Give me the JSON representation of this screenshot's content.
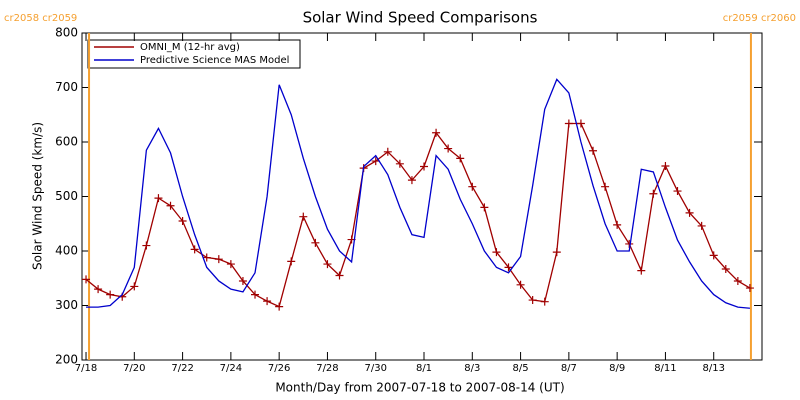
{
  "chart_data": {
    "type": "line",
    "title": "Solar Wind Speed Comparisons",
    "x_label": "Month/Day from 2007-07-18 to 2007-08-14 (UT)",
    "y_label": "Solar Wind Speed (km/s)",
    "xlim": [
      "2007-07-17T20",
      "2007-08-15T00"
    ],
    "ylim": [
      200,
      800
    ],
    "yticks": [
      200,
      300,
      400,
      500,
      600,
      700,
      800
    ],
    "xticks": [
      {
        "value": "2007-07-18T00",
        "label": "7/18"
      },
      {
        "value": "2007-07-20T00",
        "label": "7/20"
      },
      {
        "value": "2007-07-22T00",
        "label": "7/22"
      },
      {
        "value": "2007-07-24T00",
        "label": "7/24"
      },
      {
        "value": "2007-07-26T00",
        "label": "7/26"
      },
      {
        "value": "2007-07-28T00",
        "label": "7/28"
      },
      {
        "value": "2007-07-30T00",
        "label": "7/30"
      },
      {
        "value": "2007-08-01T00",
        "label": "8/1"
      },
      {
        "value": "2007-08-03T00",
        "label": "8/3"
      },
      {
        "value": "2007-08-05T00",
        "label": "8/5"
      },
      {
        "value": "2007-08-07T00",
        "label": "8/7"
      },
      {
        "value": "2007-08-09T00",
        "label": "8/9"
      },
      {
        "value": "2007-08-11T00",
        "label": "8/11"
      },
      {
        "value": "2007-08-13T00",
        "label": "8/13"
      }
    ],
    "annotations": [
      {
        "text": "cr2058 cr2059",
        "x": "2007-07-18T03",
        "color": "#f5a030"
      },
      {
        "text": "cr2059 cr2060",
        "x": "2007-08-14T13",
        "color": "#f5a030"
      }
    ],
    "legend": "upper left",
    "x": [
      "2007-07-18T00",
      "2007-07-18T12",
      "2007-07-19T00",
      "2007-07-19T12",
      "2007-07-20T00",
      "2007-07-20T12",
      "2007-07-21T00",
      "2007-07-21T12",
      "2007-07-22T00",
      "2007-07-22T12",
      "2007-07-23T00",
      "2007-07-23T12",
      "2007-07-24T00",
      "2007-07-24T12",
      "2007-07-25T00",
      "2007-07-25T12",
      "2007-07-26T00",
      "2007-07-26T12",
      "2007-07-27T00",
      "2007-07-27T12",
      "2007-07-28T00",
      "2007-07-28T12",
      "2007-07-29T00",
      "2007-07-29T12",
      "2007-07-30T00",
      "2007-07-30T12",
      "2007-07-31T00",
      "2007-07-31T12",
      "2007-08-01T00",
      "2007-08-01T12",
      "2007-08-02T00",
      "2007-08-02T12",
      "2007-08-03T00",
      "2007-08-03T12",
      "2007-08-04T00",
      "2007-08-04T12",
      "2007-08-05T00",
      "2007-08-05T12",
      "2007-08-06T00",
      "2007-08-06T12",
      "2007-08-07T00",
      "2007-08-07T12",
      "2007-08-08T00",
      "2007-08-08T12",
      "2007-08-09T00",
      "2007-08-09T12",
      "2007-08-10T00",
      "2007-08-10T12",
      "2007-08-11T00",
      "2007-08-11T12",
      "2007-08-12T00",
      "2007-08-12T12",
      "2007-08-13T00",
      "2007-08-13T12",
      "2007-08-14T00",
      "2007-08-14T12"
    ],
    "series": [
      {
        "name": "OMNI_M (12-hr avg)",
        "color": "#a00000",
        "markers": true,
        "values": [
          348,
          330,
          320,
          316,
          335,
          410,
          497,
          483,
          455,
          403,
          388,
          385,
          376,
          345,
          320,
          308,
          298,
          381,
          463,
          415,
          376,
          355,
          421,
          552,
          565,
          582,
          560,
          530,
          555,
          617,
          588,
          570,
          518,
          480,
          398,
          370,
          338,
          310,
          307,
          398,
          634,
          634,
          584,
          518,
          448,
          413,
          364,
          505,
          556,
          510,
          470,
          446,
          392,
          367,
          345,
          332
        ]
      },
      {
        "name": "Predictive Science MAS Model",
        "color": "#0000cc",
        "markers": false,
        "values": [
          297,
          297,
          300,
          320,
          370,
          585,
          625,
          580,
          500,
          430,
          370,
          345,
          330,
          325,
          360,
          500,
          705,
          650,
          570,
          500,
          440,
          400,
          380,
          555,
          575,
          540,
          480,
          430,
          425,
          575,
          550,
          495,
          450,
          400,
          370,
          360,
          390,
          520,
          660,
          715,
          690,
          600,
          520,
          450,
          400,
          400,
          550,
          545,
          480,
          420,
          380,
          345,
          320,
          305,
          297,
          295
        ]
      }
    ]
  }
}
